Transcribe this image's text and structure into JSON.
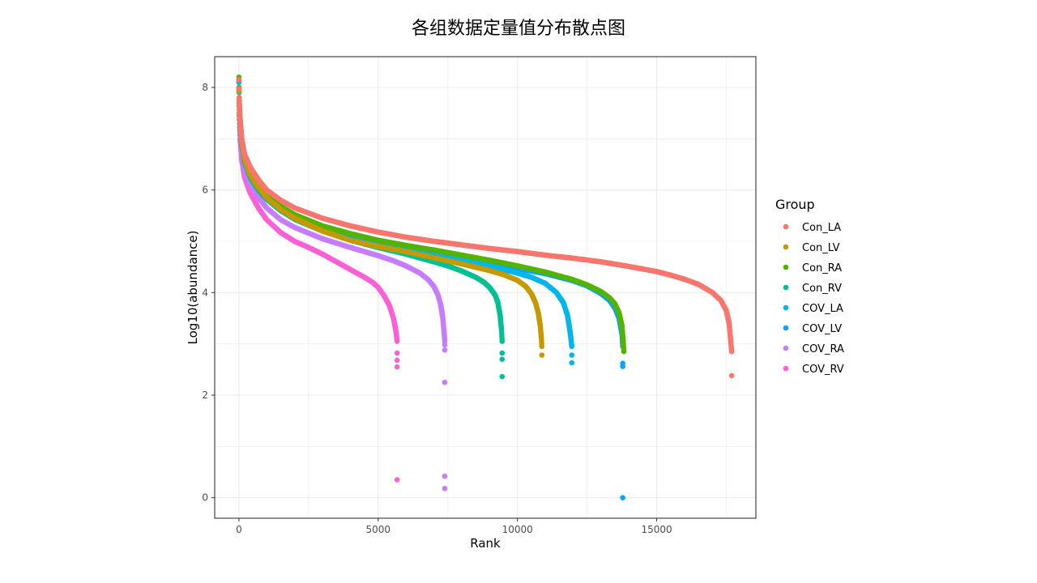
{
  "chart_data": {
    "type": "scatter",
    "title": "各组数据定量值分布散点图",
    "xlabel": "Rank",
    "ylabel": "Log10(abundance)",
    "xlim": [
      -870,
      18560
    ],
    "ylim": [
      -0.4,
      8.6
    ],
    "x_ticks": [
      0,
      5000,
      10000,
      15000
    ],
    "y_ticks": [
      0,
      2,
      4,
      6,
      8
    ],
    "grid": true,
    "legend": {
      "title": "Group",
      "position": "right"
    },
    "series": [
      {
        "name": "Con_LA",
        "color": "#F8766D",
        "n": 17700,
        "x": [
          0,
          10,
          40,
          100,
          200,
          400,
          700,
          1000,
          1500,
          2000,
          3000,
          4000,
          5000,
          6000,
          7000,
          8000,
          9000,
          10000,
          11000,
          12000,
          13000,
          14000,
          15000,
          15500,
          16000,
          16500,
          17000,
          17300,
          17500,
          17600,
          17650,
          17690
        ],
        "y": [
          8.15,
          7.8,
          7.4,
          7.0,
          6.7,
          6.45,
          6.2,
          6.0,
          5.8,
          5.65,
          5.45,
          5.3,
          5.18,
          5.08,
          5.0,
          4.93,
          4.86,
          4.8,
          4.73,
          4.67,
          4.6,
          4.51,
          4.41,
          4.34,
          4.26,
          4.16,
          4.0,
          3.85,
          3.65,
          3.4,
          3.1,
          2.85
        ],
        "outliers_y": [
          2.38
        ]
      },
      {
        "name": "Con_LV",
        "color": "#C49A00",
        "n": 10880,
        "x": [
          0,
          10,
          40,
          100,
          200,
          400,
          700,
          1000,
          1500,
          2000,
          3000,
          4000,
          5000,
          6000,
          7000,
          8000,
          9000,
          9500,
          10000,
          10300,
          10500,
          10650,
          10750,
          10820,
          10860,
          10875
        ],
        "y": [
          8.15,
          7.7,
          7.3,
          6.95,
          6.6,
          6.3,
          6.05,
          5.85,
          5.62,
          5.45,
          5.2,
          5.02,
          4.9,
          4.8,
          4.68,
          4.56,
          4.43,
          4.35,
          4.24,
          4.12,
          3.98,
          3.8,
          3.6,
          3.35,
          3.1,
          2.95
        ],
        "outliers_y": [
          2.78
        ]
      },
      {
        "name": "Con_RA",
        "color": "#53B400",
        "n": 13830,
        "x": [
          0,
          10,
          40,
          100,
          200,
          400,
          700,
          1000,
          1500,
          2000,
          3000,
          4000,
          5000,
          6000,
          7000,
          8000,
          9000,
          10000,
          11000,
          12000,
          12500,
          13000,
          13300,
          13500,
          13650,
          13750,
          13800,
          13820
        ],
        "y": [
          8.2,
          7.8,
          7.4,
          7.0,
          6.65,
          6.35,
          6.1,
          5.9,
          5.68,
          5.52,
          5.3,
          5.15,
          5.02,
          4.92,
          4.83,
          4.73,
          4.63,
          4.52,
          4.4,
          4.25,
          4.15,
          4.02,
          3.9,
          3.78,
          3.6,
          3.35,
          3.05,
          2.85
        ]
      },
      {
        "name": "Con_RV",
        "color": "#00C094",
        "n": 9460,
        "x": [
          0,
          10,
          40,
          100,
          200,
          400,
          700,
          1000,
          1500,
          2000,
          3000,
          4000,
          5000,
          6000,
          7000,
          7500,
          8000,
          8500,
          8800,
          9000,
          9200,
          9300,
          9380,
          9430,
          9450
        ],
        "y": [
          8.15,
          7.7,
          7.3,
          6.9,
          6.55,
          6.25,
          6.0,
          5.82,
          5.6,
          5.43,
          5.2,
          5.02,
          4.88,
          4.75,
          4.6,
          4.52,
          4.42,
          4.3,
          4.2,
          4.1,
          3.95,
          3.8,
          3.55,
          3.25,
          3.05
        ],
        "outliers_y": [
          2.82,
          2.7,
          2.36
        ]
      },
      {
        "name": "COV_LA",
        "color": "#00B6EB",
        "n": 11970,
        "x": [
          0,
          10,
          40,
          100,
          200,
          400,
          700,
          1000,
          1500,
          2000,
          3000,
          4000,
          5000,
          6000,
          7000,
          8000,
          9000,
          10000,
          10500,
          11000,
          11400,
          11650,
          11800,
          11900,
          11950
        ],
        "y": [
          8.1,
          7.7,
          7.3,
          6.9,
          6.55,
          6.25,
          6.0,
          5.82,
          5.6,
          5.45,
          5.22,
          5.06,
          4.94,
          4.84,
          4.74,
          4.64,
          4.52,
          4.38,
          4.3,
          4.18,
          4.0,
          3.8,
          3.55,
          3.2,
          2.95
        ],
        "outliers_y": [
          2.78,
          2.63
        ]
      },
      {
        "name": "COV_LV",
        "color": "#06A4FF",
        "n": 13800,
        "x": [
          0,
          10,
          40,
          100,
          200,
          400,
          700,
          1000,
          1500,
          2000,
          3000,
          4000,
          5000,
          6000,
          7000,
          8000,
          9000,
          10000,
          11000,
          12000,
          12500,
          13000,
          13300,
          13500,
          13650,
          13750,
          13780
        ],
        "y": [
          8.1,
          7.7,
          7.3,
          6.9,
          6.55,
          6.25,
          6.0,
          5.82,
          5.6,
          5.45,
          5.22,
          5.06,
          4.94,
          4.84,
          4.74,
          4.65,
          4.56,
          4.47,
          4.37,
          4.23,
          4.13,
          3.98,
          3.85,
          3.7,
          3.5,
          3.2,
          2.95
        ],
        "outliers_y": [
          2.62,
          2.56,
          0.0
        ]
      },
      {
        "name": "COV_RA",
        "color": "#C77CFF",
        "n": 7400,
        "x": [
          0,
          10,
          40,
          100,
          200,
          400,
          700,
          1000,
          1500,
          2000,
          3000,
          4000,
          5000,
          5500,
          6000,
          6500,
          6800,
          7000,
          7150,
          7250,
          7320,
          7370,
          7390
        ],
        "y": [
          8.0,
          7.5,
          7.1,
          6.75,
          6.4,
          6.1,
          5.85,
          5.65,
          5.42,
          5.27,
          5.05,
          4.88,
          4.72,
          4.63,
          4.52,
          4.38,
          4.25,
          4.12,
          3.95,
          3.75,
          3.5,
          3.2,
          3.05
        ],
        "outliers_y": [
          2.98,
          2.88,
          2.25,
          0.42,
          0.18
        ]
      },
      {
        "name": "COV_RV",
        "color": "#FB61D7",
        "n": 5700,
        "x": [
          0,
          10,
          40,
          100,
          200,
          400,
          700,
          1000,
          1500,
          2000,
          2500,
          3000,
          3500,
          4000,
          4500,
          4800,
          5000,
          5200,
          5400,
          5550,
          5620,
          5660,
          5680
        ],
        "y": [
          7.95,
          7.45,
          7.0,
          6.6,
          6.25,
          5.95,
          5.65,
          5.42,
          5.17,
          5.0,
          4.88,
          4.75,
          4.6,
          4.45,
          4.3,
          4.2,
          4.1,
          3.95,
          3.75,
          3.5,
          3.3,
          3.15,
          3.05
        ],
        "outliers_y": [
          2.82,
          2.68,
          2.55,
          0.35
        ]
      }
    ]
  }
}
